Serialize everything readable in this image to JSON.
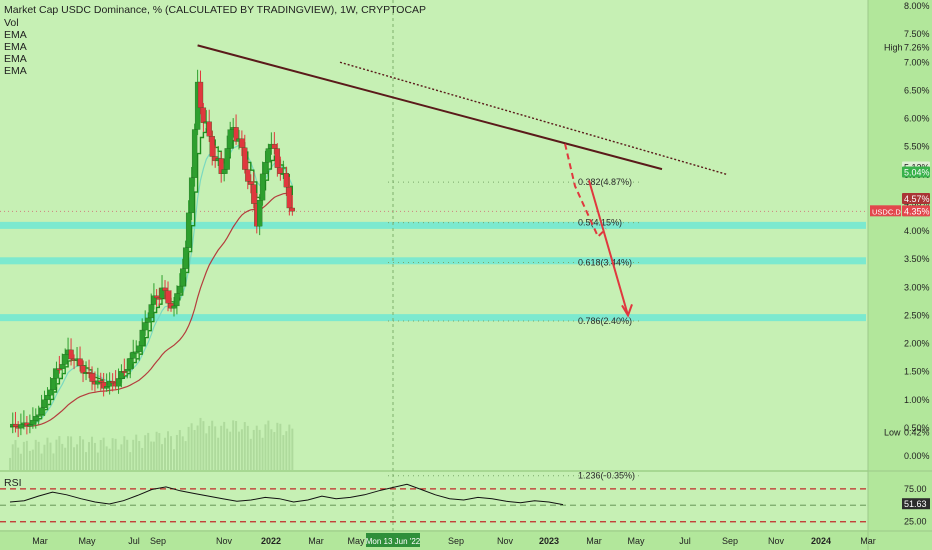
{
  "header": {
    "title": "Market Cap USDC Dominance, % (CALCULATED BY TRADINGVIEW), 1W, CRYPTOCAP",
    "legend": [
      "Vol",
      "EMA",
      "EMA",
      "EMA",
      "EMA"
    ]
  },
  "colors": {
    "background": "#b2e79b",
    "pane_background": "#c6f0b4",
    "candle_up": "#2e9f2e",
    "candle_down": "#e0383e",
    "ema_fast": "#1e8f1e",
    "ema_mid": "#7ad9c0",
    "ema_slow": "#b43d3d",
    "support_band": "#6ee8d4",
    "trendline": "#5a1a1a",
    "projection": "#e0383e",
    "rsi_line": "#111111",
    "rsi_band": "#c22a2a",
    "price_badge": "#e2474d",
    "ema_badge": "#38b24a"
  },
  "chart_data": {
    "type": "candlestick",
    "symbol": "USDC Dominance (CRYPTOCAP)",
    "timeframe": "1W",
    "y_unit": "%",
    "ylim": [
      -0.3,
      8.0
    ],
    "y_ticks": [
      "8.00%",
      "7.50%",
      "7.00%",
      "6.50%",
      "6.00%",
      "5.50%",
      "5.00%",
      "4.50%",
      "4.00%",
      "3.50%",
      "3.00%",
      "2.50%",
      "2.00%",
      "1.50%",
      "1.00%",
      "0.50%",
      "0.00%"
    ],
    "x_ticks": [
      "Mar",
      "May",
      "Jul",
      "Sep",
      "Nov",
      "2022",
      "Mar",
      "May",
      "Mon 13 Jun '22",
      "Sep",
      "Nov",
      "2023",
      "Mar",
      "May",
      "Jul",
      "Sep",
      "Nov",
      "2024",
      "Mar"
    ],
    "x_range": [
      "2021-02",
      "2024-04"
    ],
    "series": [
      {
        "name": "price",
        "points": [
          {
            "date": "2021-02",
            "close": 0.52
          },
          {
            "date": "2021-03",
            "close": 0.54
          },
          {
            "date": "2021-04",
            "close": 0.6
          },
          {
            "date": "2021-05",
            "close": 0.95
          },
          {
            "date": "2021-06",
            "close": 1.5
          },
          {
            "date": "2021-07",
            "close": 1.85
          },
          {
            "date": "2021-08",
            "close": 1.6
          },
          {
            "date": "2021-09",
            "close": 1.35
          },
          {
            "date": "2021-10",
            "close": 1.25
          },
          {
            "date": "2021-11",
            "close": 1.3
          },
          {
            "date": "2021-12",
            "close": 1.6
          },
          {
            "date": "2022-01",
            "close": 2.0
          },
          {
            "date": "2022-02",
            "close": 2.7
          },
          {
            "date": "2022-03",
            "close": 2.95
          },
          {
            "date": "2022-04",
            "close": 2.6
          },
          {
            "date": "2022-05",
            "close": 3.6
          },
          {
            "date": "2022-06",
            "close": 6.5
          },
          {
            "date": "2022-07",
            "close": 5.6
          },
          {
            "date": "2022-08",
            "close": 5.0
          },
          {
            "date": "2022-09",
            "close": 5.9
          },
          {
            "date": "2022-10",
            "close": 5.2
          },
          {
            "date": "2022-11",
            "close": 4.2
          },
          {
            "date": "2022-12",
            "close": 5.6
          },
          {
            "date": "2023-01",
            "close": 5.1
          },
          {
            "date": "2023-02",
            "close": 4.35
          }
        ]
      }
    ],
    "price_labels": {
      "high": "7.26%",
      "low": "0.42%",
      "current": "4.35%",
      "ema_a": "5.13%",
      "ema_b": "5.04%",
      "ema_c": "4.57%"
    },
    "fibonacci": [
      {
        "ratio": "0.382(4.87%)",
        "value": 4.87
      },
      {
        "ratio": "0.5(4.15%)",
        "value": 4.15
      },
      {
        "ratio": "0.618(3.44%)",
        "value": 3.44
      },
      {
        "ratio": "0.786(2.40%)",
        "value": 2.4
      },
      {
        "ratio": "1.236(-0.35%)",
        "value": -0.35
      }
    ],
    "support_bands": [
      4.1,
      3.47,
      2.46
    ],
    "trendlines": [
      {
        "from": {
          "date": "2022-06",
          "value": 7.3
        },
        "to": {
          "date": "2023-03",
          "value": 5.1
        }
      },
      {
        "from": {
          "date": "2022-05",
          "value": 7.0
        },
        "to": {
          "date": "2023-07",
          "value": 5.0
        }
      }
    ],
    "projections": [
      {
        "from": {
          "date": "2023-01",
          "value": 5.55
        },
        "via": {
          "date": "2023-02",
          "value": 4.8
        },
        "to": {
          "date": "2023-02",
          "value": 3.9
        },
        "style": "dashed"
      },
      {
        "from": {
          "date": "2023-02",
          "value": 4.9
        },
        "to": {
          "date": "2023-03",
          "value": 2.5
        },
        "style": "solid"
      }
    ],
    "side_labels": {
      "high": "High",
      "low": "Low",
      "ticker": "USDC.D"
    },
    "rsi": {
      "name": "RSI",
      "y_ticks": [
        "75.00",
        "25.00"
      ],
      "levels": [
        75,
        50,
        25
      ],
      "current": "51.63",
      "values": [
        55,
        57,
        64,
        70,
        66,
        60,
        55,
        52,
        57,
        65,
        74,
        78,
        72,
        68,
        64,
        60,
        56,
        58,
        62,
        60,
        55,
        58,
        64,
        60,
        62,
        66,
        72,
        77,
        82,
        74,
        66,
        60,
        58,
        62,
        60,
        56,
        54,
        57,
        55,
        51
      ]
    }
  }
}
